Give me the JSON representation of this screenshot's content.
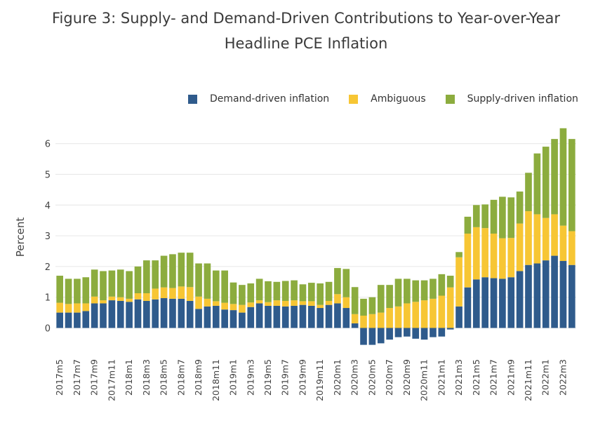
{
  "title_line1": "Figure 3: Supply- and Demand-Driven Contributions to Year-over-Year",
  "title_line2": "Headline PCE Inflation",
  "colors": {
    "demand": "#2f5b8c",
    "ambiguous": "#f7c634",
    "supply": "#8cac3e"
  },
  "chart_data": {
    "type": "bar",
    "stacked": true,
    "title": "Figure 3: Supply- and Demand-Driven Contributions to Year-over-Year Headline PCE Inflation",
    "xlabel": "",
    "ylabel": "Percent",
    "ylim": [
      -0.9,
      6.6
    ],
    "yticks": [
      0,
      1,
      2,
      3,
      4,
      5,
      6
    ],
    "legend_position": "top-right",
    "grid": true,
    "categories": [
      "2017m5",
      "2017m6",
      "2017m7",
      "2017m8",
      "2017m9",
      "2017m10",
      "2017m11",
      "2017m12",
      "2018m1",
      "2018m2",
      "2018m3",
      "2018m4",
      "2018m5",
      "2018m6",
      "2018m7",
      "2018m8",
      "2018m9",
      "2018m10",
      "2018m11",
      "2018m12",
      "2019m1",
      "2019m2",
      "2019m3",
      "2019m4",
      "2019m5",
      "2019m6",
      "2019m7",
      "2019m8",
      "2019m9",
      "2019m10",
      "2019m11",
      "2019m12",
      "2020m1",
      "2020m2",
      "2020m3",
      "2020m4",
      "2020m5",
      "2020m6",
      "2020m7",
      "2020m8",
      "2020m9",
      "2020m10",
      "2020m11",
      "2020m12",
      "2021m1",
      "2021m2",
      "2021m3",
      "2021m4",
      "2021m5",
      "2021m6",
      "2021m7",
      "2021m8",
      "2021m9",
      "2021m10",
      "2021m11",
      "2021m12",
      "2022m1",
      "2022m2",
      "2022m3",
      "2022m4"
    ],
    "tick_labels": [
      "2017m5",
      "2017m7",
      "2017m9",
      "2017m11",
      "2018m1",
      "2018m3",
      "2018m5",
      "2018m7",
      "2018m9",
      "2018m11",
      "2019m1",
      "2019m3",
      "2019m5",
      "2019m7",
      "2019m9",
      "2019m11",
      "2020m1",
      "2020m3",
      "2020m5",
      "2020m7",
      "2020m9",
      "2020m11",
      "2021m1",
      "2021m3",
      "2021m5",
      "2021m7",
      "2021m9",
      "2021m11",
      "2022m1",
      "2022m3"
    ],
    "series": [
      {
        "name": "Demand-driven inflation",
        "values": [
          0.5,
          0.5,
          0.5,
          0.55,
          0.8,
          0.8,
          0.9,
          0.88,
          0.85,
          0.93,
          0.88,
          0.93,
          0.97,
          0.95,
          0.95,
          0.88,
          0.62,
          0.7,
          0.72,
          0.6,
          0.58,
          0.5,
          0.68,
          0.8,
          0.72,
          0.72,
          0.7,
          0.72,
          0.75,
          0.72,
          0.65,
          0.75,
          0.8,
          0.65,
          0.15,
          -0.55,
          -0.55,
          -0.5,
          -0.38,
          -0.3,
          -0.28,
          -0.35,
          -0.38,
          -0.3,
          -0.28,
          -0.05,
          0.7,
          1.32,
          1.58,
          1.65,
          1.62,
          1.6,
          1.65,
          1.85,
          2.05,
          2.1,
          2.2,
          2.35,
          2.18,
          2.05
        ]
      },
      {
        "name": "Ambiguous",
        "values": [
          0.32,
          0.28,
          0.3,
          0.25,
          0.22,
          0.1,
          0.12,
          0.12,
          0.1,
          0.2,
          0.25,
          0.35,
          0.35,
          0.35,
          0.4,
          0.45,
          0.4,
          0.25,
          0.15,
          0.22,
          0.2,
          0.25,
          0.15,
          0.1,
          0.12,
          0.18,
          0.18,
          0.18,
          0.12,
          0.15,
          0.1,
          0.13,
          0.3,
          0.35,
          0.3,
          0.4,
          0.45,
          0.5,
          0.65,
          0.7,
          0.8,
          0.85,
          0.9,
          0.95,
          1.05,
          1.32,
          1.6,
          1.75,
          1.7,
          1.6,
          1.45,
          1.32,
          1.28,
          1.55,
          1.75,
          1.6,
          1.38,
          1.35,
          1.15,
          1.1
        ]
      },
      {
        "name": "Supply-driven inflation",
        "values": [
          0.88,
          0.82,
          0.8,
          0.85,
          0.88,
          0.95,
          0.85,
          0.9,
          0.9,
          0.87,
          1.07,
          0.92,
          1.03,
          1.1,
          1.1,
          1.12,
          1.08,
          1.15,
          1.0,
          1.05,
          0.7,
          0.65,
          0.62,
          0.7,
          0.68,
          0.6,
          0.65,
          0.65,
          0.55,
          0.6,
          0.7,
          0.62,
          0.85,
          0.92,
          0.88,
          0.55,
          0.55,
          0.9,
          0.75,
          0.9,
          0.8,
          0.7,
          0.65,
          0.65,
          0.7,
          0.38,
          0.17,
          0.55,
          0.72,
          0.77,
          1.1,
          1.35,
          1.32,
          1.04,
          1.25,
          1.98,
          2.32,
          2.45,
          3.17,
          3.0
        ]
      }
    ]
  }
}
